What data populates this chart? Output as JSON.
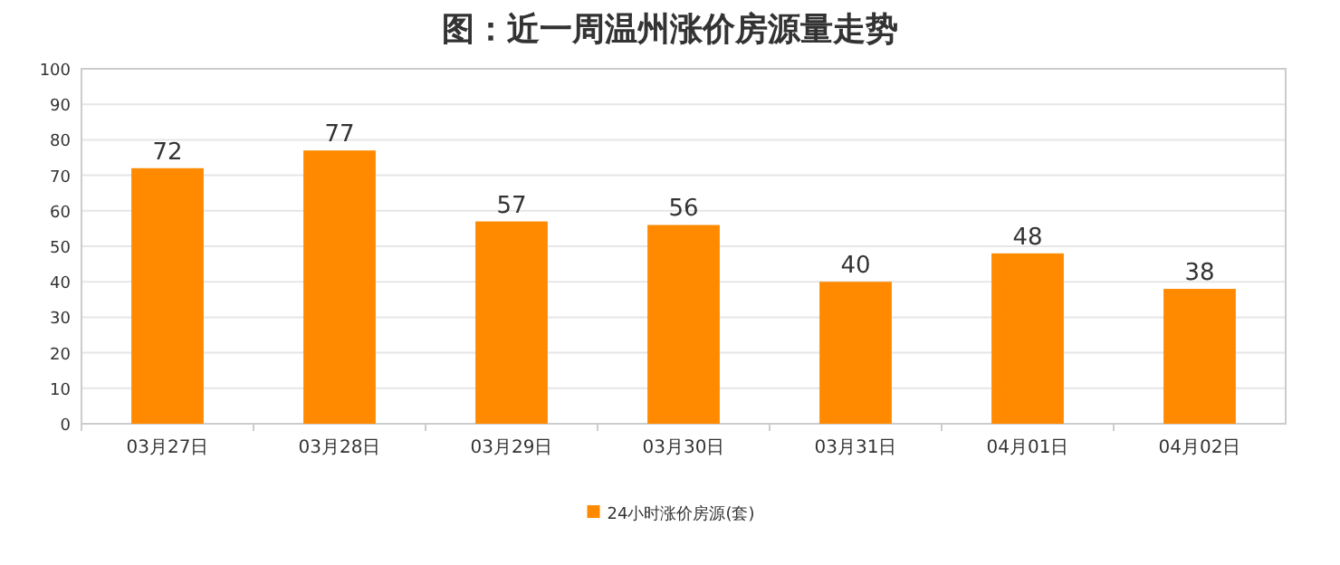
{
  "chart_data": {
    "type": "bar",
    "title": "图：近一周温州涨价房源量走势",
    "categories": [
      "03月27日",
      "03月28日",
      "03月29日",
      "03月30日",
      "03月31日",
      "04月01日",
      "04月02日"
    ],
    "series": [
      {
        "name": "24小时涨价房源(套)",
        "color": "#ff8a00",
        "values": [
          72,
          77,
          57,
          56,
          40,
          48,
          38
        ]
      }
    ],
    "ylim": [
      0,
      100
    ],
    "yticks": [
      0,
      10,
      20,
      30,
      40,
      50,
      60,
      70,
      80,
      90,
      100
    ],
    "grid": "y",
    "legend": "bottom",
    "data_labels": true
  }
}
